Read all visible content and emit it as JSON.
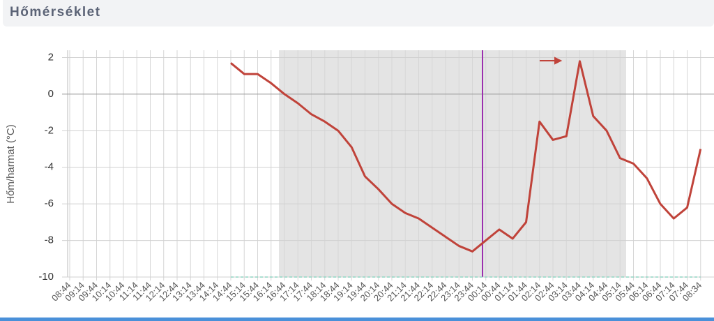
{
  "header": {
    "title": "Hőmérséklet"
  },
  "chart_data": {
    "type": "line",
    "ylabel": "Hőm/harmat (°C)",
    "categories": [
      "08:44",
      "09:14",
      "09:44",
      "10:14",
      "10:44",
      "11:14",
      "11:44",
      "12:14",
      "12:44",
      "13:14",
      "13:44",
      "14:14",
      "14:44",
      "15:14",
      "15:44",
      "16:14",
      "16:44",
      "17:14",
      "17:44",
      "18:14",
      "18:44",
      "19:14",
      "19:44",
      "20:14",
      "20:44",
      "21:14",
      "21:44",
      "22:14",
      "22:44",
      "23:14",
      "23:44",
      "00:14",
      "00:44",
      "01:14",
      "01:44",
      "02:14",
      "02:44",
      "03:14",
      "03:44",
      "04:14",
      "04:44",
      "05:14",
      "05:44",
      "06:14",
      "06:44",
      "07:14",
      "07:44",
      "08:34"
    ],
    "series": [
      {
        "name": "Hőmérséklet",
        "color": "#c0433a",
        "values": [
          null,
          null,
          null,
          null,
          null,
          null,
          null,
          null,
          null,
          null,
          null,
          null,
          1.7,
          1.1,
          1.1,
          0.6,
          0.0,
          -0.5,
          -1.1,
          -1.5,
          -2.0,
          -2.9,
          -4.5,
          -5.2,
          -6.0,
          -6.5,
          -6.8,
          -7.3,
          -7.8,
          -8.3,
          -8.6,
          -8.0,
          -7.4,
          -7.9,
          -7.0,
          -1.5,
          -2.5,
          -2.3,
          1.8,
          -1.2,
          -2.0,
          -3.5,
          -3.8,
          -4.6,
          -6.0,
          -6.8,
          -6.2,
          -3.0
        ]
      },
      {
        "name": "Harmat",
        "color": "#8fd6c4",
        "values": [
          null,
          null,
          null,
          null,
          null,
          null,
          null,
          null,
          null,
          null,
          null,
          null,
          -10,
          -10,
          -10,
          -10,
          -10,
          -10,
          -10,
          -10,
          -10,
          -10,
          -10,
          -10,
          -10,
          -10,
          -10,
          -10,
          -10,
          -10,
          -10,
          -10,
          -10,
          -10,
          -10,
          -10,
          -10,
          -10,
          -10,
          -10,
          -10,
          -10,
          -10,
          -10,
          -10,
          -10,
          -10,
          -10
        ]
      }
    ],
    "ylim": [
      -10,
      2.4
    ],
    "yticks": [
      2,
      0,
      -2,
      -4,
      -6,
      -8,
      -10
    ],
    "grid": true
  }
}
